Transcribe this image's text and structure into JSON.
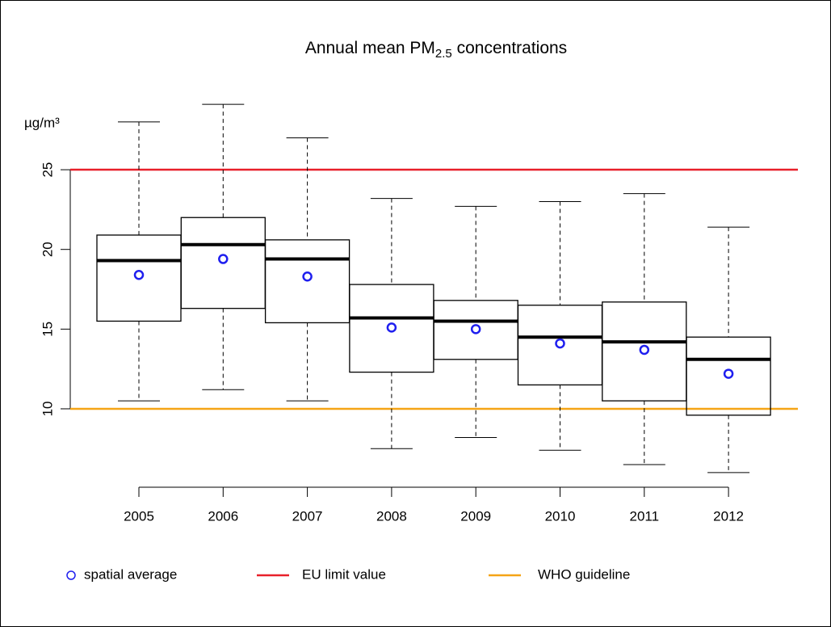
{
  "chart_data": {
    "type": "box",
    "title": [
      "Annual mean PM",
      "2.5",
      " concentrations"
    ],
    "y_unit": "µg/m³",
    "categories": [
      "2005",
      "2006",
      "2007",
      "2008",
      "2009",
      "2010",
      "2011",
      "2012"
    ],
    "whisker_high": [
      28.0,
      29.1,
      27.0,
      23.2,
      22.7,
      23.0,
      23.5,
      21.4
    ],
    "q3": [
      20.9,
      22.0,
      20.6,
      17.8,
      16.8,
      16.5,
      16.7,
      14.5
    ],
    "median": [
      19.3,
      20.3,
      19.4,
      15.7,
      15.5,
      14.5,
      14.2,
      13.1
    ],
    "q1": [
      15.5,
      16.3,
      15.4,
      12.3,
      13.1,
      11.5,
      10.5,
      9.6
    ],
    "whisker_low": [
      10.5,
      11.2,
      10.5,
      7.5,
      8.2,
      7.4,
      6.5,
      6.0
    ],
    "mean": {
      "name": "spatial average",
      "color": "#1f1fef",
      "values": [
        18.4,
        19.4,
        18.3,
        15.1,
        15.0,
        14.1,
        13.7,
        12.2
      ]
    },
    "reference_lines": [
      {
        "name": "EU limit value",
        "value": 25,
        "color": "#e8202a"
      },
      {
        "name": "WHO guideline",
        "value": 10,
        "color": "#f5a416"
      }
    ],
    "ylim": [
      5,
      31
    ],
    "yticks": [
      10,
      15,
      20,
      25
    ]
  }
}
